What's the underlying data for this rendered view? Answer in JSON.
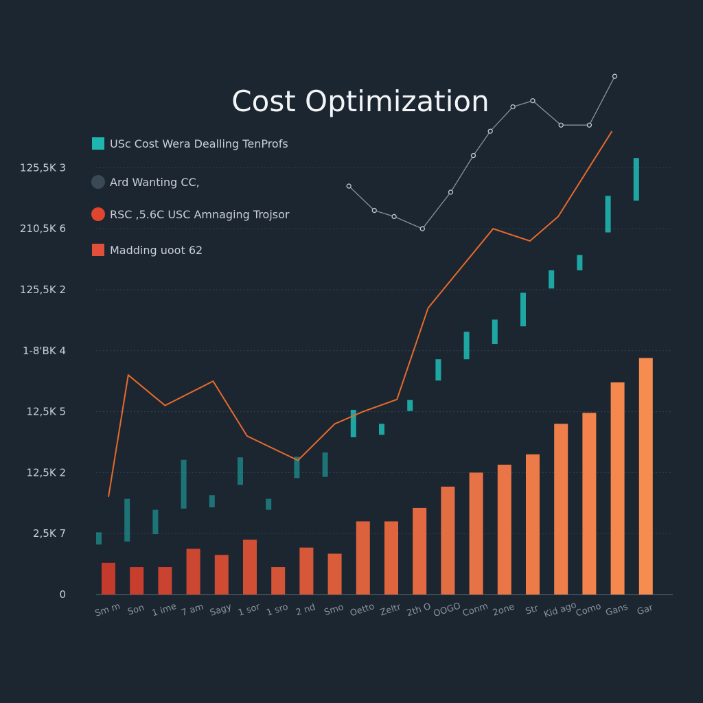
{
  "chart_data": {
    "type": "bar",
    "title": "Cost Optimization",
    "xlabel": "",
    "ylabel": "",
    "ylim": [
      0,
      9
    ],
    "grid": true,
    "legend_placement": "top-left",
    "y_ticks": [
      {
        "value": 0,
        "label": "0"
      },
      {
        "value": 1,
        "label": "2,5K 7"
      },
      {
        "value": 2,
        "label": "12,5K 2"
      },
      {
        "value": 3,
        "label": "12,5K 5"
      },
      {
        "value": 4,
        "label": "1-8'BK 4"
      },
      {
        "value": 5,
        "label": "125,5K 2"
      },
      {
        "value": 6,
        "label": "210,5K 6"
      },
      {
        "value": 7,
        "label": "125,5K 3"
      }
    ],
    "categories": [
      "Sm m",
      "Son",
      "1 ime",
      "7 am",
      "Sagy",
      "1 sor",
      "1 sro",
      "2 nd",
      "Smo",
      "Oetto",
      "Zeltr",
      "2th O",
      "OOGO",
      "Conm",
      "2one",
      "Str",
      "Kid ago",
      "Como",
      "Gans",
      "Gar"
    ],
    "legend": [
      {
        "label": "USc Cost Wera Dealling TenProfs",
        "marker": "square",
        "color": "#1fb5b0"
      },
      {
        "label": "Ard Wanting CC,",
        "marker": "circle",
        "color": "#3a4a55"
      },
      {
        "label": "RSC ,5.6C USC Amnaging Trojsor",
        "marker": "circle",
        "color": "#e0452e"
      },
      {
        "label": "Madding uoot 62",
        "marker": "square",
        "color": "#e2503a"
      }
    ],
    "series": [
      {
        "name": "Madding uoot 62",
        "kind": "bar",
        "values": [
          0.52,
          0.45,
          0.45,
          0.75,
          0.65,
          0.9,
          0.45,
          0.77,
          0.67,
          1.2,
          1.2,
          1.42,
          1.77,
          2.0,
          2.13,
          2.3,
          2.8,
          2.98,
          3.48,
          3.88
        ]
      },
      {
        "name": "USc Cost Wera Dealling TenProfs",
        "kind": "bar",
        "values": [
          0.2,
          0.7,
          0.4,
          0.8,
          0.2,
          0.45,
          0.1,
          0.35,
          0.4,
          0.45,
          0.1,
          0.15,
          0.35,
          0.45,
          0.4,
          0.55,
          0.3,
          0.25,
          0.6,
          0.7
        ]
      },
      {
        "name": "RSC ,5.6C USC Amnaging Trojsor",
        "kind": "line",
        "x": [
          0,
          0.7,
          2,
          3.7,
          4.9,
          6.7,
          8,
          9,
          10.2,
          11.3,
          13.6,
          14.9,
          15.9,
          17.8
        ],
        "values": [
          1.6,
          3.6,
          3.1,
          3.5,
          2.6,
          2.2,
          2.8,
          3.0,
          3.2,
          4.7,
          6.0,
          5.8,
          6.2,
          7.6
        ]
      },
      {
        "name": "Ard Wanting CC,",
        "kind": "line",
        "x": [
          8.5,
          9.4,
          10.1,
          11.1,
          12.1,
          12.9,
          13.5,
          14.3,
          15.0,
          16.0,
          17.0,
          17.9
        ],
        "values": [
          6.7,
          6.3,
          6.2,
          6.0,
          6.6,
          7.2,
          7.6,
          8.0,
          8.1,
          7.7,
          7.7,
          8.5
        ]
      }
    ]
  }
}
